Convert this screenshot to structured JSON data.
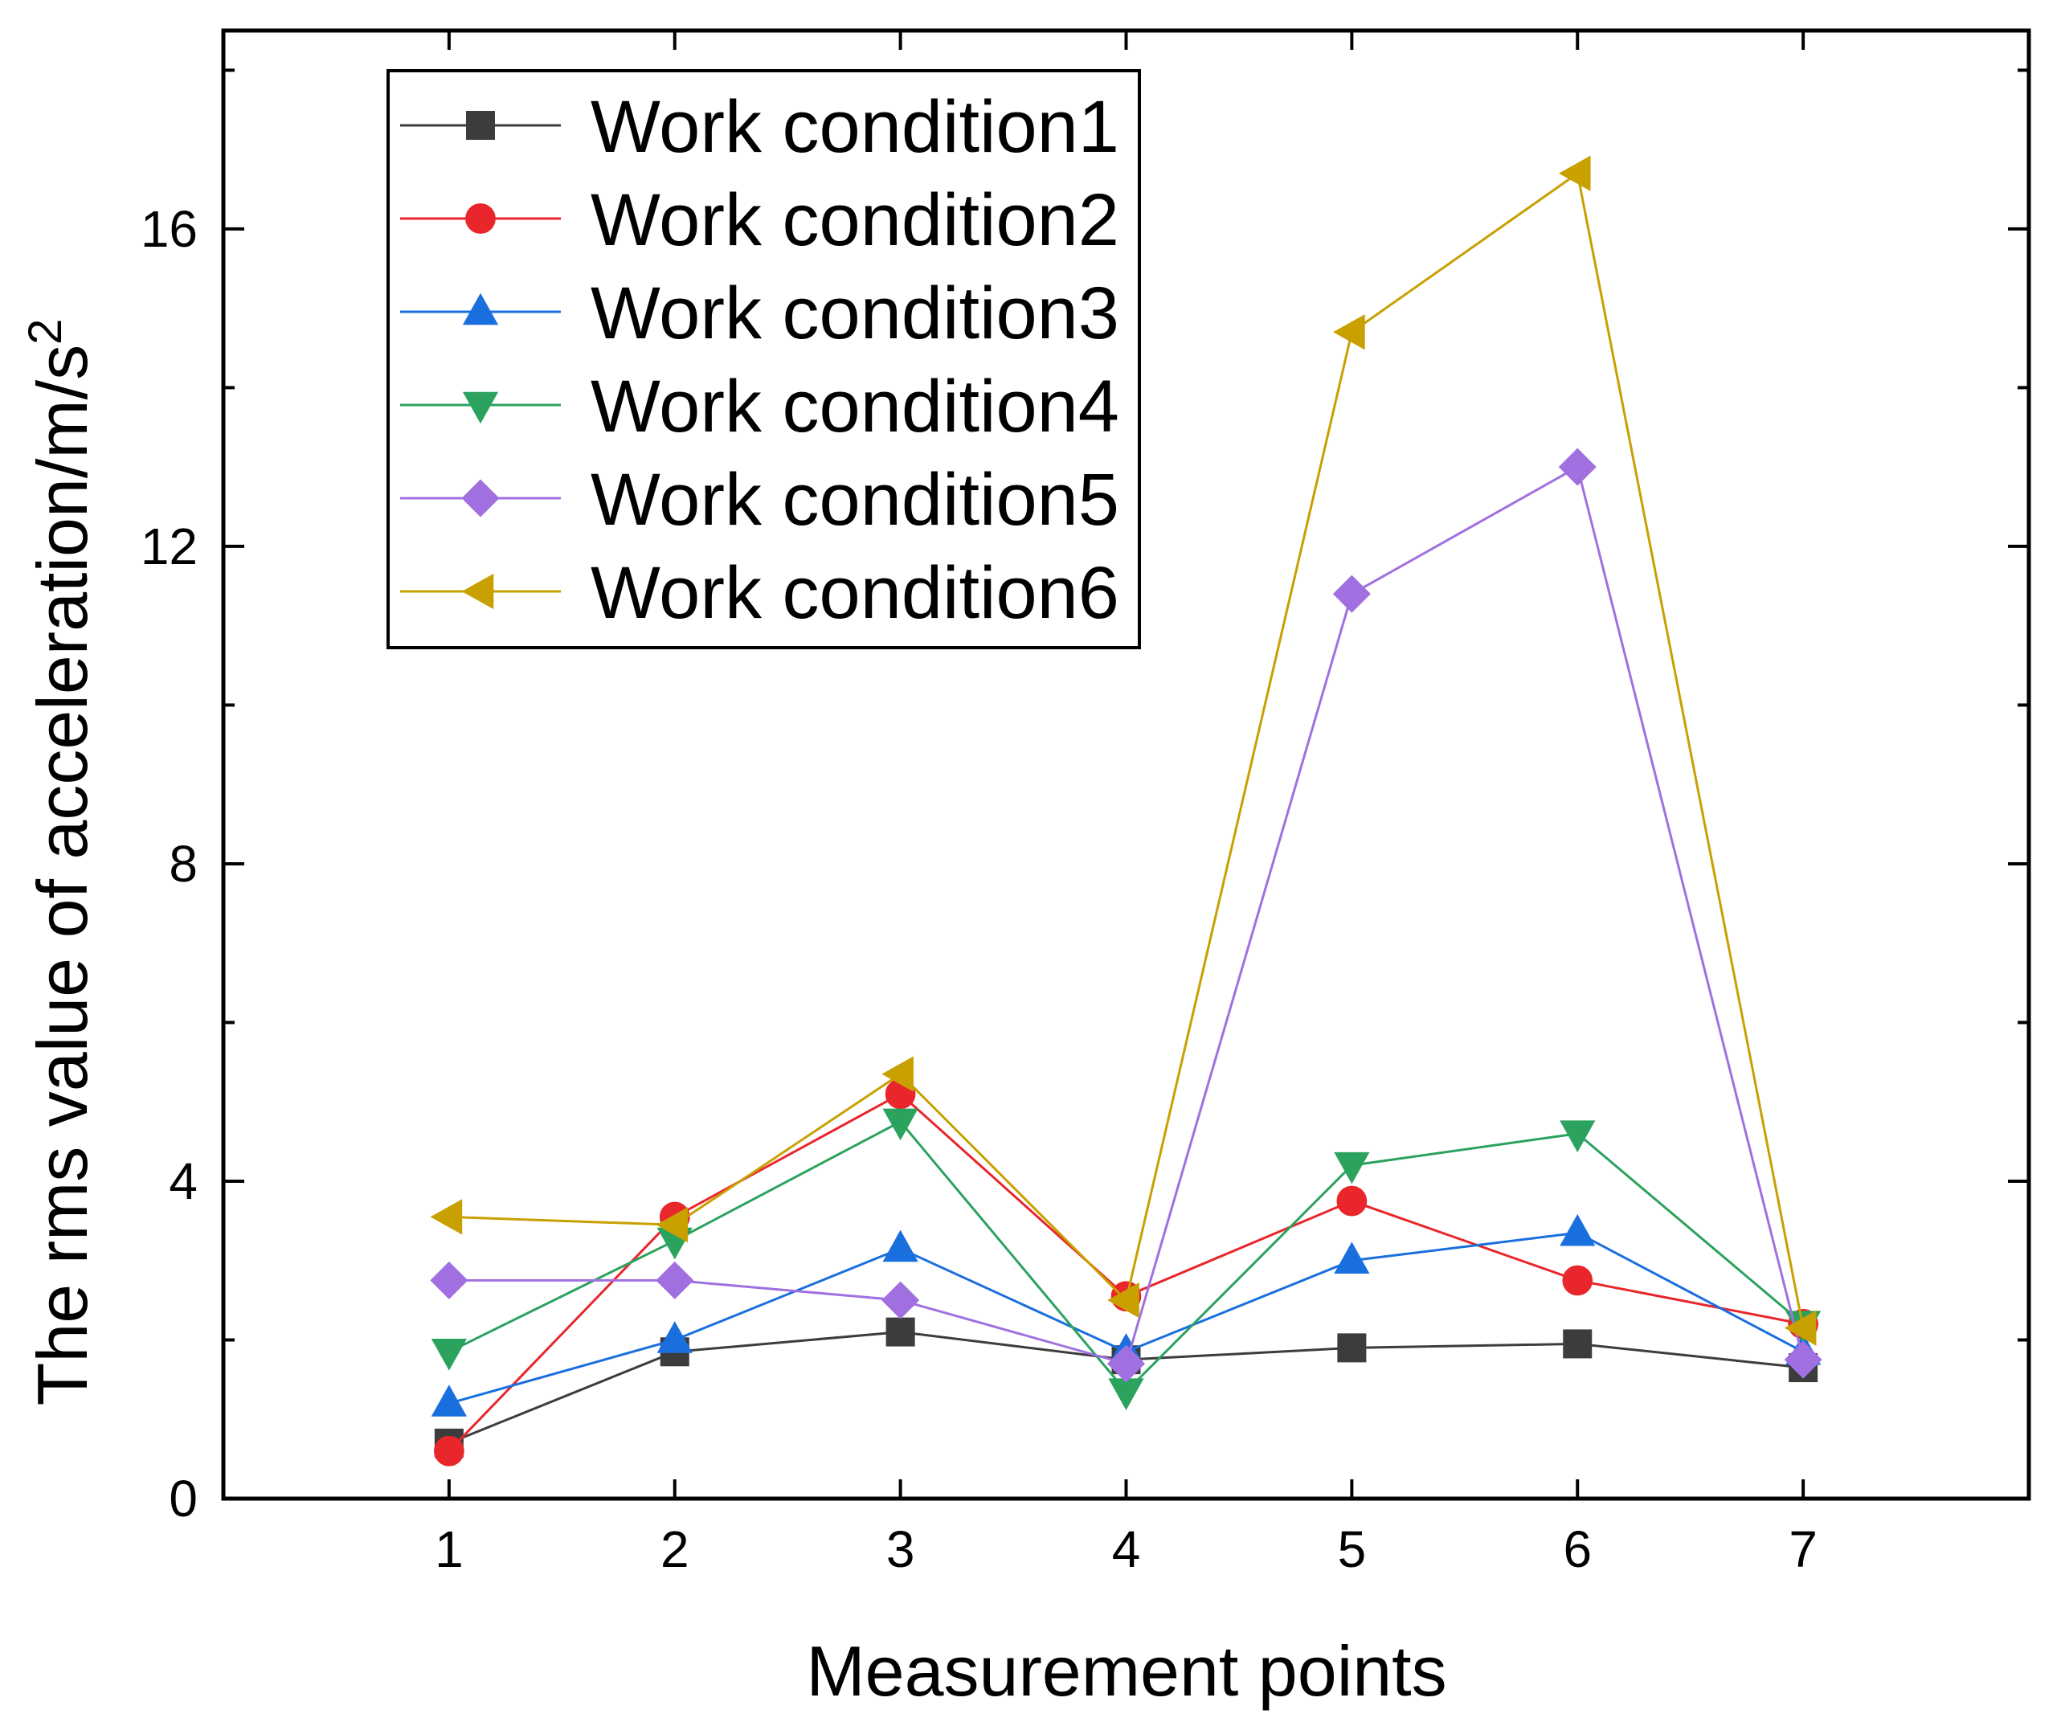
{
  "chart_data": {
    "type": "line",
    "title": "",
    "xlabel": "Measurement points",
    "ylabel": "The rms value of acceleration/m/s",
    "ylabel_superscript": "2",
    "x": [
      1,
      2,
      3,
      4,
      5,
      6,
      7
    ],
    "xlim": [
      0,
      8
    ],
    "ylim": [
      0,
      18.5
    ],
    "yticks": [
      0,
      4,
      8,
      12,
      16
    ],
    "legend_position": "top-left",
    "grid": false,
    "series": [
      {
        "name": "Work condition1",
        "color": "#3c3c3c",
        "marker": "square",
        "values": [
          0.7,
          1.85,
          2.1,
          1.75,
          1.9,
          1.95,
          1.65
        ]
      },
      {
        "name": "Work condition2",
        "color": "#e8262b",
        "marker": "circle",
        "values": [
          0.6,
          3.55,
          5.1,
          2.55,
          3.75,
          2.75,
          2.2
        ]
      },
      {
        "name": "Work condition3",
        "color": "#1a6fdf",
        "marker": "triangle-up",
        "values": [
          1.2,
          2.0,
          3.15,
          1.85,
          3.0,
          3.35,
          1.85
        ]
      },
      {
        "name": "Work condition4",
        "color": "#2ca25f",
        "marker": "triangle-down",
        "values": [
          1.85,
          3.25,
          4.75,
          1.35,
          4.2,
          4.6,
          2.2
        ]
      },
      {
        "name": "Work condition5",
        "color": "#a070e0",
        "marker": "diamond",
        "values": [
          2.75,
          2.75,
          2.5,
          1.7,
          11.4,
          13.0,
          1.75
        ]
      },
      {
        "name": "Work condition6",
        "color": "#c8a000",
        "marker": "triangle-left",
        "values": [
          3.55,
          3.45,
          5.35,
          2.5,
          14.7,
          16.7,
          2.15
        ]
      }
    ]
  }
}
